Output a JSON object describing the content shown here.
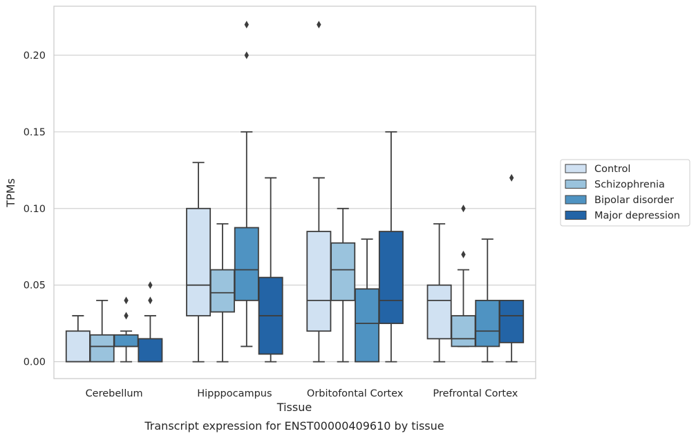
{
  "chart_data": {
    "type": "box",
    "title": "",
    "caption": "Transcript expression for ENST00000409610 by tissue",
    "xlabel": "Tissue",
    "ylabel": "TPMs",
    "ylim": [
      -0.011,
      0.232
    ],
    "yticks": [
      0.0,
      0.05,
      0.1,
      0.15,
      0.2
    ],
    "ytick_labels": [
      "0.00",
      "0.05",
      "0.10",
      "0.15",
      "0.20"
    ],
    "grid": "horizontal",
    "legend_position": "right",
    "categories": [
      "Cerebellum",
      "Hipppocampus",
      "Orbitofontal Cortex",
      "Prefrontal Cortex"
    ],
    "series": [
      {
        "name": "Control",
        "color": "#d0e1f2",
        "boxes": [
          {
            "whislo": 0.0,
            "q1": 0.0,
            "med": 0.0,
            "q3": 0.02,
            "whishi": 0.03,
            "fliers": []
          },
          {
            "whislo": 0.0,
            "q1": 0.03,
            "med": 0.05,
            "q3": 0.1,
            "whishi": 0.13,
            "fliers": []
          },
          {
            "whislo": 0.0,
            "q1": 0.02,
            "med": 0.04,
            "q3": 0.085,
            "whishi": 0.12,
            "fliers": [
              0.22
            ]
          },
          {
            "whislo": 0.0,
            "q1": 0.015,
            "med": 0.04,
            "q3": 0.05,
            "whishi": 0.09,
            "fliers": []
          }
        ]
      },
      {
        "name": "Schizophrenia",
        "color": "#9ac3dd",
        "boxes": [
          {
            "whislo": 0.0,
            "q1": 0.0,
            "med": 0.01,
            "q3": 0.0175,
            "whishi": 0.04,
            "fliers": []
          },
          {
            "whislo": 0.0,
            "q1": 0.0325,
            "med": 0.045,
            "q3": 0.06,
            "whishi": 0.09,
            "fliers": []
          },
          {
            "whislo": 0.0,
            "q1": 0.04,
            "med": 0.06,
            "q3": 0.0775,
            "whishi": 0.1,
            "fliers": []
          },
          {
            "whislo": 0.01,
            "q1": 0.01,
            "med": 0.015,
            "q3": 0.03,
            "whishi": 0.06,
            "fliers": [
              0.07,
              0.1
            ]
          }
        ]
      },
      {
        "name": "Bipolar disorder",
        "color": "#4f93c2",
        "boxes": [
          {
            "whislo": 0.0,
            "q1": 0.01,
            "med": 0.01,
            "q3": 0.0175,
            "whishi": 0.02,
            "fliers": [
              0.03,
              0.04
            ]
          },
          {
            "whislo": 0.01,
            "q1": 0.04,
            "med": 0.06,
            "q3": 0.0875,
            "whishi": 0.15,
            "fliers": [
              0.2,
              0.22
            ]
          },
          {
            "whislo": 0.0,
            "q1": 0.0,
            "med": 0.025,
            "q3": 0.0475,
            "whishi": 0.08,
            "fliers": []
          },
          {
            "whislo": 0.0,
            "q1": 0.01,
            "med": 0.02,
            "q3": 0.04,
            "whishi": 0.08,
            "fliers": []
          }
        ]
      },
      {
        "name": "Major depression",
        "color": "#2364a6",
        "boxes": [
          {
            "whislo": 0.0,
            "q1": 0.0,
            "med": 0.0,
            "q3": 0.015,
            "whishi": 0.03,
            "fliers": [
              0.04,
              0.05
            ]
          },
          {
            "whislo": 0.0,
            "q1": 0.005,
            "med": 0.03,
            "q3": 0.055,
            "whishi": 0.12,
            "fliers": []
          },
          {
            "whislo": 0.0,
            "q1": 0.025,
            "med": 0.04,
            "q3": 0.085,
            "whishi": 0.15,
            "fliers": []
          },
          {
            "whislo": 0.0,
            "q1": 0.0125,
            "med": 0.03,
            "q3": 0.04,
            "whishi": 0.04,
            "fliers": [
              0.12
            ]
          }
        ]
      }
    ]
  }
}
